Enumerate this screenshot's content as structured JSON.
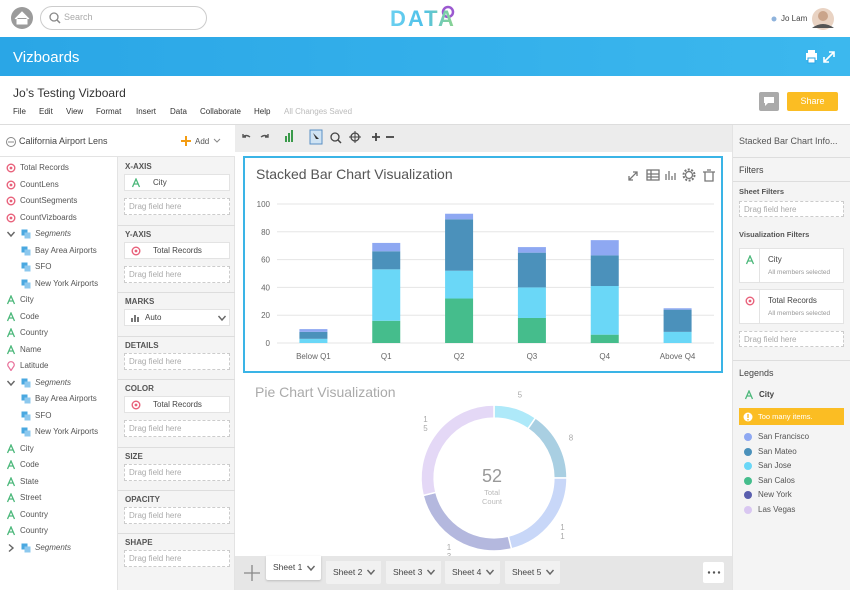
{
  "topbar": {
    "search_placeholder": "Search",
    "logo": "DATA",
    "user": "Jo Lam"
  },
  "banner": {
    "title": "Vizboards"
  },
  "document": {
    "title": "Jo’s Testing Vizboard",
    "menu": [
      "File",
      "Edit",
      "View",
      "Format",
      "Insert",
      "Data",
      "Collaborate",
      "Help"
    ],
    "status": "All Changes Saved",
    "share": "Share"
  },
  "lens": {
    "title": "California Airport Lens",
    "add": "Add",
    "fields": [
      {
        "type": "measure",
        "label": "Total Records"
      },
      {
        "type": "measure",
        "label": "CountLens"
      },
      {
        "type": "measure",
        "label": "CountSegments"
      },
      {
        "type": "measure",
        "label": "CountVizboards"
      },
      {
        "type": "group",
        "label": "Segments",
        "expanded": true
      },
      {
        "type": "segment",
        "label": "Bay Area Airports"
      },
      {
        "type": "segment",
        "label": "SFO"
      },
      {
        "type": "segment",
        "label": "New York Airports"
      },
      {
        "type": "dimension",
        "label": "City"
      },
      {
        "type": "dimension",
        "label": "Code"
      },
      {
        "type": "dimension",
        "label": "Country"
      },
      {
        "type": "dimension",
        "label": "Name"
      },
      {
        "type": "geo",
        "label": "Latitude"
      },
      {
        "type": "group",
        "label": "Segments",
        "expanded": true
      },
      {
        "type": "segment",
        "label": "Bay Area Airports"
      },
      {
        "type": "segment",
        "label": "SFO"
      },
      {
        "type": "segment",
        "label": "New York Airports"
      },
      {
        "type": "dimension",
        "label": "City"
      },
      {
        "type": "dimension",
        "label": "Code"
      },
      {
        "type": "dimension",
        "label": "State"
      },
      {
        "type": "dimension",
        "label": "Street"
      },
      {
        "type": "dimension",
        "label": "Country"
      },
      {
        "type": "dimension",
        "label": "Country"
      },
      {
        "type": "group",
        "label": "Segments",
        "expanded": false
      }
    ]
  },
  "shelves": {
    "drop_hint": "Drag field here",
    "items": [
      {
        "title": "X-AXIS",
        "pill": "City",
        "icon": "dimension",
        "drop": true
      },
      {
        "title": "Y-AXIS",
        "pill": "Total Records",
        "icon": "measure",
        "drop": true
      },
      {
        "title": "MARKS",
        "select": "Auto"
      },
      {
        "title": "DETAILS",
        "drop": true
      },
      {
        "title": "COLOR",
        "pill": "Total Records",
        "icon": "measure",
        "drop": true
      },
      {
        "title": "SIZE",
        "drop": true
      },
      {
        "title": "OPACITY",
        "drop": true
      },
      {
        "title": "SHAPE",
        "drop": true
      }
    ]
  },
  "chart_data": [
    {
      "type": "bar",
      "stacked": true,
      "title": "Stacked Bar Chart Visualization",
      "categories": [
        "Below Q1",
        "Q1",
        "Q2",
        "Q3",
        "Q4",
        "Above Q4"
      ],
      "ylim": [
        0,
        100
      ],
      "yticks": [
        0,
        20,
        40,
        60,
        80,
        100
      ],
      "grid": true,
      "series": [
        {
          "name": "San Francisco",
          "color": "#8ea8f2",
          "values": [
            2,
            6,
            4,
            4,
            11,
            1
          ]
        },
        {
          "name": "San Mateo",
          "color": "#4b91bb",
          "values": [
            5,
            13,
            37,
            25,
            22,
            16
          ]
        },
        {
          "name": "San Jose",
          "color": "#6ad7f7",
          "values": [
            3,
            37,
            20,
            22,
            35,
            8
          ]
        },
        {
          "name": "San Calos",
          "color": "#45bd8c",
          "values": [
            0,
            16,
            32,
            18,
            6,
            0
          ]
        },
        {
          "name": "New York",
          "color": "#5a5fae",
          "values": [
            0,
            0,
            0,
            0,
            0,
            0
          ]
        },
        {
          "name": "Las Vegas",
          "color": "#d9c7f1",
          "values": [
            0,
            0,
            0,
            0,
            0,
            0
          ]
        }
      ]
    },
    {
      "type": "pie",
      "donut": true,
      "title": "Pie Chart Visualization",
      "values": [
        5,
        8,
        11,
        13,
        15
      ],
      "colors": [
        "#aee9f9",
        "#a9cfe2",
        "#c8d7f8",
        "#b4b8de",
        "#e4d8f6"
      ],
      "total": 52,
      "center_label": [
        "Total",
        "Count"
      ]
    }
  ],
  "sheets": {
    "tabs": [
      "Sheet 1",
      "Sheet 2",
      "Sheet 3",
      "Sheet 4",
      "Sheet 5"
    ],
    "active": 0
  },
  "info_panel": {
    "title": "Stacked Bar Chart Info...",
    "filters_heading": "Filters",
    "sheet_filters": "Sheet Filters",
    "viz_filters": "Visualization Filters",
    "filters": [
      {
        "name": "City",
        "detail": "All members selected",
        "icon": "dimension"
      },
      {
        "name": "Total Records",
        "detail": "All members selected",
        "icon": "measure"
      }
    ],
    "legends_heading": "Legends",
    "legend_field": "City",
    "warning": "Too many items."
  }
}
